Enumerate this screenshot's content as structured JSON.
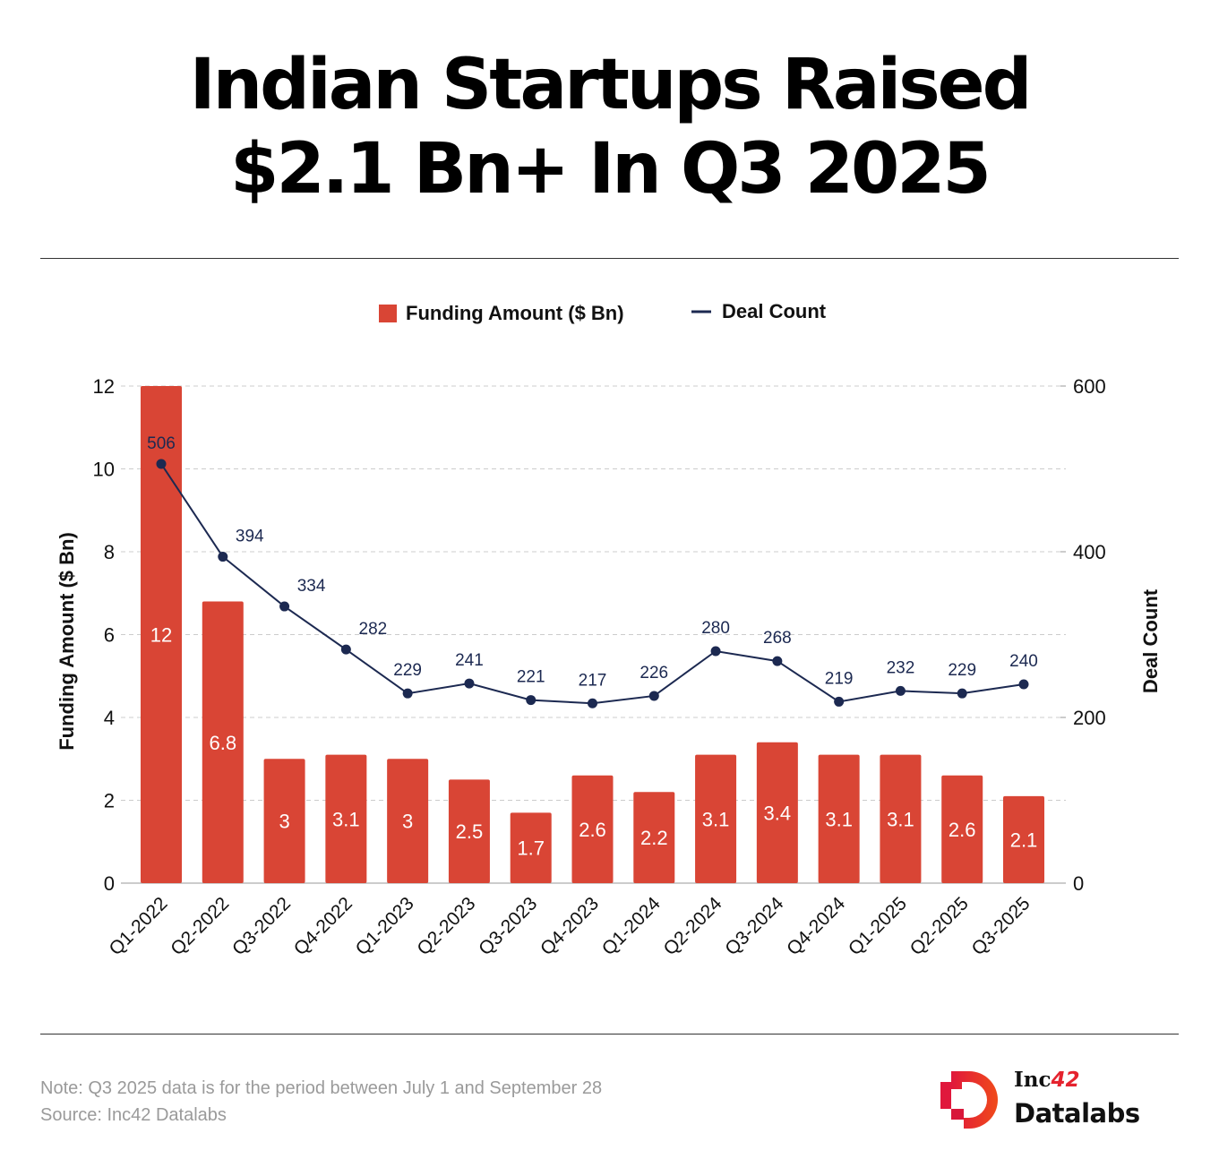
{
  "title_line1": "Indian Startups Raised",
  "title_line2": "$2.1 Bn+  In Q3 2025",
  "note": "Note: Q3 2025 data is for the period between July 1 and September 28",
  "source": "Source: Inc42 Datalabs",
  "logo": {
    "line1": "Inc",
    "line1_accent": "42",
    "line2": "Datalabs"
  },
  "colors": {
    "bar": "#d94535",
    "line": "#1c2951"
  },
  "chart_data": {
    "type": "bar+line",
    "categories": [
      "Q1-2022",
      "Q2-2022",
      "Q3-2022",
      "Q4-2022",
      "Q1-2023",
      "Q2-2023",
      "Q3-2023",
      "Q4-2023",
      "Q1-2024",
      "Q2-2024",
      "Q3-2024",
      "Q4-2024",
      "Q1-2025",
      "Q2-2025",
      "Q3-2025"
    ],
    "series": [
      {
        "name": "Funding Amount ($ Bn)",
        "type": "bar",
        "axis": "left",
        "values": [
          12,
          6.8,
          3,
          3.1,
          3,
          2.5,
          1.7,
          2.6,
          2.2,
          3.1,
          3.4,
          3.1,
          3.1,
          2.6,
          2.1
        ]
      },
      {
        "name": "Deal Count",
        "type": "line",
        "axis": "right",
        "values": [
          506,
          394,
          334,
          282,
          229,
          241,
          221,
          217,
          226,
          280,
          268,
          219,
          232,
          229,
          240
        ]
      }
    ],
    "ylabel": "Funding Amount ($ Bn)",
    "y2label": "Deal Count",
    "ylim": [
      0,
      12
    ],
    "y2lim": [
      0,
      600
    ],
    "yticks": [
      0,
      2,
      4,
      6,
      8,
      10,
      12
    ],
    "y2ticks": [
      0,
      200,
      400,
      600
    ],
    "legend": "top-center",
    "grid": true
  }
}
